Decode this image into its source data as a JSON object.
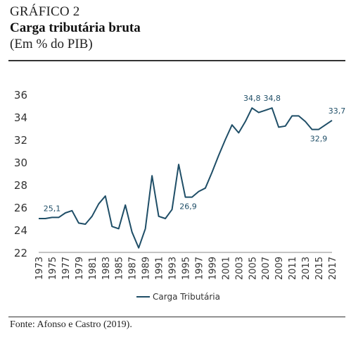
{
  "header": {
    "label": "GRÁFICO 2",
    "title": "Carga tributária bruta",
    "subtitle": "(Em % do PIB)"
  },
  "source": "Fonte: Afonso e Castro (2019).",
  "colors": {
    "line": "#1f4e67",
    "text": "#333333"
  },
  "chart_data": {
    "type": "line",
    "x": [
      1973,
      1974,
      1975,
      1976,
      1977,
      1978,
      1979,
      1980,
      1981,
      1982,
      1983,
      1984,
      1985,
      1986,
      1987,
      1988,
      1989,
      1990,
      1991,
      1992,
      1993,
      1994,
      1995,
      1996,
      1997,
      1998,
      1999,
      2000,
      2001,
      2002,
      2003,
      2004,
      2005,
      2006,
      2007,
      2008,
      2009,
      2010,
      2011,
      2012,
      2013,
      2014,
      2015,
      2016,
      2017
    ],
    "series": [
      {
        "name": "Carga Tributária",
        "values": [
          25.0,
          25.0,
          25.1,
          25.1,
          25.5,
          25.7,
          24.6,
          24.5,
          25.2,
          26.3,
          27.0,
          24.3,
          24.1,
          26.2,
          23.8,
          22.4,
          24.1,
          28.8,
          25.2,
          25.0,
          25.8,
          29.8,
          26.9,
          26.9,
          27.4,
          27.7,
          29.1,
          30.6,
          32.0,
          33.3,
          32.6,
          33.6,
          34.8,
          34.4,
          34.6,
          34.8,
          33.1,
          33.2,
          34.1,
          34.1,
          33.6,
          32.9,
          32.9,
          33.3,
          33.7
        ]
      }
    ],
    "data_labels": [
      {
        "x": 1975,
        "text": "25,1"
      },
      {
        "x": 1995,
        "text": "26,9"
      },
      {
        "x": 2005,
        "text": "34,8"
      },
      {
        "x": 2008,
        "text": "34,8"
      },
      {
        "x": 2015,
        "text": "32,9"
      },
      {
        "x": 2017,
        "text": "33,7"
      }
    ],
    "ylim": [
      22,
      36
    ],
    "yticks": [
      22,
      24,
      26,
      28,
      30,
      32,
      34,
      36
    ],
    "xticks": [
      1973,
      1975,
      1977,
      1979,
      1981,
      1983,
      1985,
      1987,
      1989,
      1991,
      1993,
      1995,
      1997,
      1999,
      2001,
      2003,
      2005,
      2007,
      2009,
      2011,
      2013,
      2015,
      2017
    ],
    "grid": false,
    "legend": "bottom-center",
    "xlabel": "",
    "ylabel": ""
  }
}
